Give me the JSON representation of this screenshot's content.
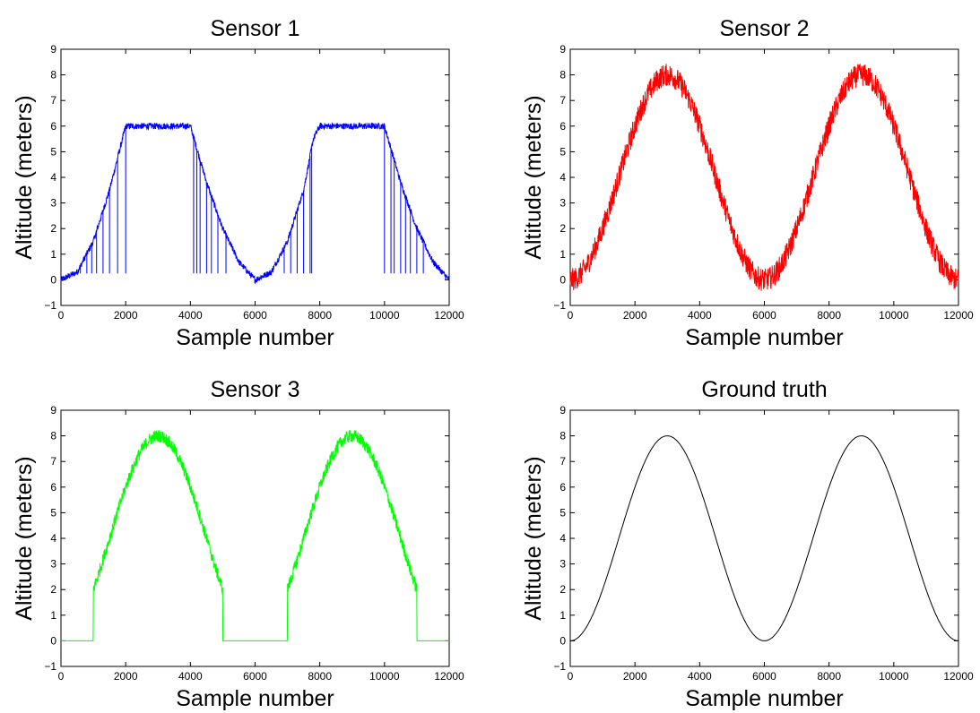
{
  "chart_data": [
    {
      "type": "line",
      "title": "Sensor 1",
      "xlabel": "Sample number",
      "ylabel": "Altitude (meters)",
      "xlim": [
        0,
        12000
      ],
      "ylim": [
        -1,
        9
      ],
      "xticks": [
        "0",
        "2000",
        "4000",
        "6000",
        "8000",
        "10000",
        "12000"
      ],
      "yticks": [
        "−1",
        "0",
        "1",
        "2",
        "3",
        "4",
        "5",
        "6",
        "7",
        "8",
        "9"
      ],
      "grid": false,
      "color": "#0000ff",
      "series": [
        {
          "x": [
            0,
            500,
            1000,
            1500,
            2000,
            2500,
            3000,
            3500,
            4000,
            4500,
            5000,
            5500,
            6000,
            6500,
            7000,
            7500,
            7800,
            8000,
            8500,
            9000,
            9500,
            10000,
            10500,
            11000,
            11500,
            12000
          ],
          "values": [
            0.0,
            0.3,
            1.5,
            3.5,
            6.0,
            6.0,
            6.0,
            6.0,
            6.0,
            3.8,
            2.0,
            0.7,
            0.0,
            0.3,
            1.5,
            3.5,
            5.5,
            6.0,
            6.0,
            6.0,
            6.0,
            6.0,
            3.8,
            2.0,
            0.7,
            0.0
          ]
        }
      ],
      "spikes_x": [
        600,
        800,
        950,
        1100,
        1300,
        1500,
        1750,
        2000,
        4100,
        4200,
        4300,
        4500,
        4650,
        4850,
        5100,
        6900,
        7100,
        7300,
        7500,
        7700,
        7750,
        10000,
        10200,
        10300,
        10500,
        10650,
        10800,
        11000,
        11200
      ]
    },
    {
      "type": "line",
      "title": "Sensor 2",
      "xlabel": "Sample number",
      "ylabel": "Altitude (meters)",
      "xlim": [
        0,
        12000
      ],
      "ylim": [
        -1,
        9
      ],
      "xticks": [
        "0",
        "2000",
        "4000",
        "6000",
        "8000",
        "10000",
        "12000"
      ],
      "yticks": [
        "−1",
        "0",
        "1",
        "2",
        "3",
        "4",
        "5",
        "6",
        "7",
        "8",
        "9"
      ],
      "grid": false,
      "color": "#ff0000",
      "series": [
        {
          "x": [
            0,
            1000,
            2000,
            3000,
            4000,
            5000,
            6000,
            7000,
            8000,
            9000,
            10000,
            11000,
            12000
          ],
          "values": [
            0.0,
            2.0,
            6.0,
            8.0,
            6.0,
            2.0,
            0.0,
            2.0,
            6.0,
            8.0,
            6.0,
            2.0,
            0.0
          ],
          "noise": "±0.5"
        }
      ]
    },
    {
      "type": "line",
      "title": "Sensor 3",
      "xlabel": "Sample number",
      "ylabel": "Altitude (meters)",
      "xlim": [
        0,
        12000
      ],
      "ylim": [
        -1,
        9
      ],
      "xticks": [
        "0",
        "2000",
        "4000",
        "6000",
        "8000",
        "10000",
        "12000"
      ],
      "yticks": [
        "−1",
        "0",
        "1",
        "2",
        "3",
        "4",
        "5",
        "6",
        "7",
        "8",
        "9"
      ],
      "grid": false,
      "color": "#00ff00",
      "series": [
        {
          "x": [
            0,
            1000,
            1000,
            2000,
            3000,
            4000,
            5000,
            5000,
            7000,
            7000,
            8000,
            9000,
            10000,
            11000,
            11000,
            12000
          ],
          "values": [
            0.0,
            0.0,
            2.0,
            6.0,
            8.0,
            6.0,
            2.0,
            0.0,
            0.0,
            2.0,
            6.0,
            8.0,
            6.0,
            2.0,
            0.0,
            0.0
          ],
          "noise": "±0.3 where active"
        }
      ]
    },
    {
      "type": "line",
      "title": "Ground truth",
      "xlabel": "Sample number",
      "ylabel": "Altitude (meters)",
      "xlim": [
        0,
        12000
      ],
      "ylim": [
        -1,
        9
      ],
      "xticks": [
        "0",
        "2000",
        "4000",
        "6000",
        "8000",
        "10000",
        "12000"
      ],
      "yticks": [
        "−1",
        "0",
        "1",
        "2",
        "3",
        "4",
        "5",
        "6",
        "7",
        "8",
        "9"
      ],
      "grid": false,
      "color": "#000000",
      "series": [
        {
          "x": [
            0,
            1000,
            2000,
            3000,
            4000,
            5000,
            6000,
            7000,
            8000,
            9000,
            10000,
            11000,
            12000
          ],
          "values": [
            0.0,
            2.0,
            6.0,
            8.0,
            6.0,
            2.0,
            0.0,
            2.0,
            6.0,
            8.0,
            6.0,
            2.0,
            0.0
          ]
        }
      ]
    }
  ]
}
